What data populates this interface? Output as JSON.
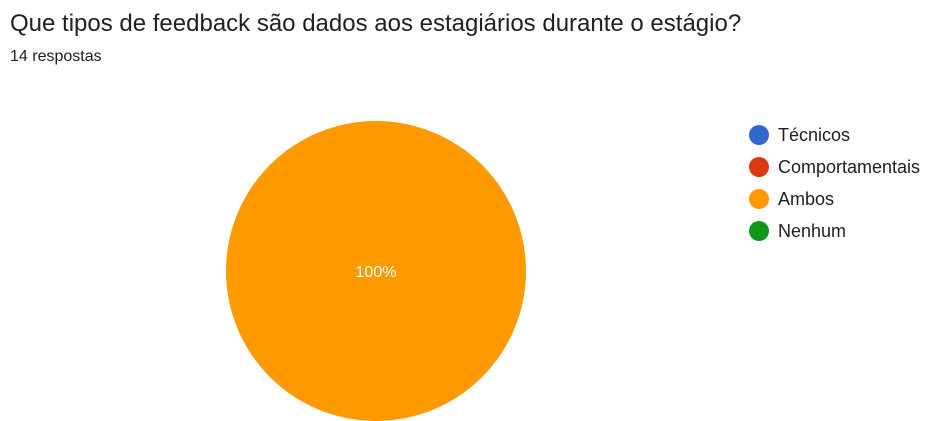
{
  "title": "Que tipos de feedback são dados aos estagiários durante o estágio?",
  "subtitle": "14 respostas",
  "chart_data": {
    "type": "pie",
    "title": "Que tipos de feedback são dados aos estagiários durante o estágio?",
    "total_responses": 14,
    "categories": [
      "Técnicos",
      "Comportamentais",
      "Ambos",
      "Nenhum"
    ],
    "values": [
      0,
      0,
      14,
      0
    ],
    "percentages": [
      0,
      0,
      100,
      0
    ],
    "colors": [
      "#3366cc",
      "#dc3912",
      "#ff9900",
      "#109618"
    ],
    "slice_labels": [
      "",
      "",
      "100%",
      ""
    ],
    "legend_position": "right"
  }
}
